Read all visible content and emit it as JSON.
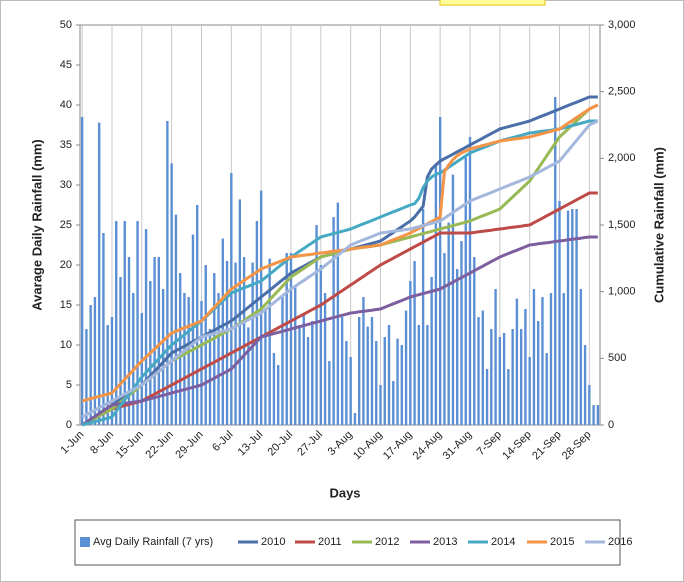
{
  "chart_data": {
    "type": "combo",
    "x_title": "Days",
    "y_title": "Avarage Daily Rainfall (mm)",
    "y2_title": "Cumulative Rainfall (mm)",
    "categories": [
      "1-Jun",
      null,
      null,
      null,
      null,
      null,
      null,
      "8-Jun",
      null,
      null,
      null,
      null,
      null,
      null,
      "15-Jun",
      null,
      null,
      null,
      null,
      null,
      null,
      "22-Jun",
      null,
      null,
      null,
      null,
      null,
      null,
      "29-Jun",
      null,
      null,
      null,
      null,
      null,
      null,
      "6-Jul",
      null,
      null,
      null,
      null,
      null,
      null,
      "13-Jul",
      null,
      null,
      null,
      null,
      null,
      null,
      "20-Jul",
      null,
      null,
      null,
      null,
      null,
      null,
      "27-Jul",
      null,
      null,
      null,
      null,
      null,
      null,
      "3-Aug",
      null,
      null,
      null,
      null,
      null,
      null,
      "10-Aug",
      null,
      null,
      null,
      null,
      null,
      null,
      "17-Aug",
      null,
      null,
      null,
      null,
      null,
      null,
      "24-Aug",
      null,
      null,
      null,
      null,
      null,
      null,
      "31-Aug",
      null,
      null,
      null,
      null,
      null,
      null,
      "7-Sep",
      null,
      null,
      null,
      null,
      null,
      null,
      "14-Sep",
      null,
      null,
      null,
      null,
      null,
      null,
      "21-Sep",
      null,
      null,
      null,
      null,
      null,
      null,
      "28-Sep",
      null,
      null
    ],
    "ylim": [
      0,
      50
    ],
    "yticks": [
      0,
      5,
      10,
      15,
      20,
      25,
      30,
      35,
      40,
      45,
      50
    ],
    "y2lim": [
      0,
      3000
    ],
    "y2ticks": [
      0,
      500,
      {
        "value": 1000,
        "label": "1,000"
      },
      {
        "value": 1500,
        "label": "1,500"
      },
      {
        "value": 2000,
        "label": "2,000"
      },
      {
        "value": 2500,
        "label": "2,500"
      },
      {
        "value": 3000,
        "label": "3,000"
      }
    ],
    "grid": "x",
    "series": [
      {
        "name": "Avg Daily Rainfall (7 yrs)",
        "type": "bar",
        "color": "#5b8fd4",
        "values": [
          38.5,
          12,
          15,
          16,
          37.8,
          24,
          12.5,
          13.5,
          25.5,
          18.5,
          25.5,
          21,
          16.5,
          25.5,
          14,
          24.5,
          18,
          21,
          21,
          17,
          38,
          32.7,
          26.3,
          19,
          16.5,
          16,
          23.8,
          27.5,
          15.5,
          20,
          12,
          19,
          16.5,
          23.3,
          20.5,
          31.5,
          20.3,
          28.2,
          21,
          12.2,
          20.3,
          25.5,
          29.3,
          14.5,
          20.8,
          9,
          7.5,
          16,
          21.5,
          21.5,
          17.5,
          12.5,
          14,
          11,
          13,
          25,
          20,
          16.5,
          8,
          26,
          27.8,
          13.5,
          10.5,
          8.5,
          1.5,
          13.5,
          16,
          12.3,
          13.5,
          10.5,
          5,
          11,
          12.5,
          5.5,
          10.8,
          10,
          14.3,
          18,
          20.5,
          12.5,
          27,
          12.5,
          18.5,
          32.7,
          38.5,
          21.5,
          25.3,
          31.3,
          19.5,
          23,
          33.5,
          36,
          21,
          13.5,
          14.3,
          7,
          12,
          17,
          11,
          11.5,
          7,
          12,
          15.8,
          12,
          14.5,
          8.5,
          17,
          13,
          16,
          9,
          16.5,
          41,
          28,
          16.5,
          26.8,
          27,
          27,
          17,
          10,
          5,
          2.5,
          2.5
        ]
      },
      {
        "name": "2010",
        "type": "line",
        "axis": "y2",
        "color": "#4a6ea8",
        "values": [
          0,
          21,
          43,
          64,
          86,
          107,
          129,
          150,
          171,
          193,
          214,
          236,
          257,
          279,
          300,
          334,
          369,
          403,
          437,
          471,
          506,
          540,
          557,
          574,
          591,
          609,
          626,
          643,
          660,
          677,
          694,
          711,
          729,
          746,
          763,
          780,
          806,
          831,
          857,
          883,
          909,
          934,
          960,
          986,
          1011,
          1037,
          1063,
          1089,
          1114,
          1140,
          1157,
          1174,
          1191,
          1209,
          1226,
          1243,
          1260,
          1269,
          1277,
          1286,
          1294,
          1303,
          1311,
          1320,
          1329,
          1337,
          1346,
          1354,
          1363,
          1371,
          1380,
          1401,
          1423,
          1444,
          1466,
          1487,
          1509,
          1530,
          1560,
          1600,
          1640,
          1860,
          1920,
          1950,
          1980,
          1997,
          2014,
          2031,
          2049,
          2066,
          2083,
          2100,
          2117,
          2134,
          2151,
          2169,
          2186,
          2203,
          2220,
          2229,
          2237,
          2246,
          2254,
          2263,
          2271,
          2280,
          2293,
          2306,
          2319,
          2331,
          2344,
          2357,
          2370,
          2383,
          2396,
          2409,
          2421,
          2434,
          2447,
          2460,
          2460,
          2460
        ]
      },
      {
        "name": "2011",
        "type": "line",
        "axis": "y2",
        "color": "#be4b48",
        "values": [
          0,
          17,
          34,
          51,
          69,
          86,
          103,
          120,
          129,
          137,
          146,
          154,
          163,
          171,
          180,
          197,
          214,
          231,
          249,
          266,
          283,
          300,
          317,
          334,
          351,
          369,
          386,
          403,
          420,
          437,
          454,
          471,
          489,
          506,
          523,
          540,
          557,
          574,
          591,
          609,
          626,
          643,
          660,
          677,
          694,
          711,
          729,
          746,
          763,
          780,
          797,
          814,
          831,
          849,
          866,
          883,
          900,
          921,
          943,
          964,
          986,
          1007,
          1029,
          1050,
          1071,
          1093,
          1114,
          1136,
          1157,
          1179,
          1200,
          1217,
          1234,
          1251,
          1269,
          1286,
          1303,
          1320,
          1337,
          1354,
          1371,
          1389,
          1406,
          1423,
          1440,
          1440,
          1440,
          1440,
          1440,
          1440,
          1440,
          1440,
          1444,
          1449,
          1453,
          1457,
          1461,
          1466,
          1470,
          1474,
          1479,
          1483,
          1487,
          1491,
          1496,
          1500,
          1517,
          1534,
          1551,
          1569,
          1586,
          1603,
          1620,
          1637,
          1654,
          1671,
          1689,
          1706,
          1723,
          1740,
          1740,
          1740
        ]
      },
      {
        "name": "2012",
        "type": "line",
        "axis": "y2",
        "color": "#98b954",
        "values": [
          0,
          17,
          34,
          51,
          69,
          86,
          103,
          120,
          146,
          171,
          197,
          223,
          249,
          274,
          300,
          326,
          351,
          377,
          403,
          429,
          454,
          480,
          497,
          514,
          531,
          549,
          566,
          583,
          600,
          617,
          634,
          651,
          669,
          686,
          703,
          720,
          741,
          763,
          784,
          806,
          827,
          849,
          870,
          904,
          939,
          973,
          1007,
          1041,
          1076,
          1110,
          1131,
          1153,
          1174,
          1196,
          1217,
          1239,
          1260,
          1269,
          1277,
          1286,
          1294,
          1303,
          1311,
          1320,
          1324,
          1329,
          1333,
          1337,
          1341,
          1346,
          1350,
          1359,
          1367,
          1376,
          1384,
          1393,
          1401,
          1410,
          1419,
          1427,
          1436,
          1444,
          1453,
          1461,
          1470,
          1479,
          1487,
          1496,
          1504,
          1513,
          1521,
          1530,
          1543,
          1556,
          1569,
          1581,
          1594,
          1607,
          1620,
          1650,
          1680,
          1710,
          1740,
          1770,
          1800,
          1830,
          1877,
          1924,
          1971,
          2019,
          2066,
          2113,
          2160,
          2190,
          2220,
          2250,
          2280,
          2310,
          2340,
          2370,
          2385,
          2400
        ]
      },
      {
        "name": "2013",
        "type": "line",
        "axis": "y2",
        "color": "#7d5fa0",
        "values": [
          0,
          21,
          43,
          64,
          86,
          107,
          129,
          150,
          154,
          159,
          163,
          167,
          171,
          176,
          180,
          189,
          197,
          206,
          214,
          223,
          231,
          240,
          249,
          257,
          266,
          274,
          283,
          291,
          300,
          317,
          334,
          351,
          369,
          386,
          403,
          420,
          454,
          489,
          523,
          557,
          591,
          626,
          660,
          669,
          677,
          686,
          694,
          703,
          711,
          720,
          729,
          737,
          746,
          754,
          763,
          771,
          780,
          789,
          797,
          806,
          814,
          823,
          831,
          840,
          844,
          849,
          853,
          857,
          861,
          866,
          870,
          883,
          896,
          909,
          921,
          934,
          947,
          960,
          969,
          977,
          986,
          994,
          1003,
          1011,
          1020,
          1037,
          1054,
          1071,
          1089,
          1106,
          1123,
          1140,
          1157,
          1174,
          1191,
          1209,
          1226,
          1243,
          1260,
          1273,
          1286,
          1299,
          1311,
          1324,
          1337,
          1350,
          1354,
          1359,
          1363,
          1367,
          1371,
          1376,
          1380,
          1384,
          1389,
          1393,
          1397,
          1401,
          1406,
          1410,
          1410,
          1410
        ]
      },
      {
        "name": "2014",
        "type": "line",
        "axis": "y2",
        "color": "#46a9c4",
        "values": [
          0,
          9,
          17,
          26,
          34,
          43,
          51,
          60,
          103,
          146,
          189,
          231,
          274,
          317,
          360,
          394,
          429,
          463,
          497,
          531,
          566,
          600,
          626,
          651,
          677,
          703,
          729,
          754,
          780,
          810,
          840,
          870,
          900,
          930,
          960,
          990,
          1003,
          1016,
          1029,
          1041,
          1054,
          1067,
          1080,
          1106,
          1131,
          1157,
          1183,
          1209,
          1234,
          1260,
          1281,
          1303,
          1324,
          1346,
          1367,
          1389,
          1410,
          1419,
          1427,
          1436,
          1444,
          1453,
          1461,
          1470,
          1483,
          1496,
          1509,
          1521,
          1534,
          1547,
          1560,
          1573,
          1586,
          1599,
          1611,
          1624,
          1637,
          1650,
          1660,
          1700,
          1780,
          1830,
          1860,
          1880,
          1890,
          1911,
          1933,
          1954,
          1976,
          1997,
          2019,
          2040,
          2053,
          2066,
          2079,
          2091,
          2104,
          2117,
          2130,
          2139,
          2147,
          2156,
          2164,
          2173,
          2181,
          2190,
          2194,
          2199,
          2203,
          2207,
          2211,
          2216,
          2220,
          2229,
          2237,
          2246,
          2254,
          2263,
          2271,
          2280,
          2280,
          2280
        ]
      },
      {
        "name": "2015",
        "type": "line",
        "axis": "y2",
        "color": "#f39446",
        "values": [
          180,
          189,
          197,
          206,
          214,
          223,
          231,
          240,
          274,
          309,
          343,
          377,
          411,
          446,
          480,
          510,
          540,
          570,
          600,
          630,
          660,
          690,
          703,
          716,
          729,
          741,
          754,
          767,
          780,
          814,
          849,
          883,
          917,
          951,
          986,
          1020,
          1041,
          1063,
          1084,
          1106,
          1127,
          1149,
          1170,
          1183,
          1196,
          1209,
          1221,
          1234,
          1247,
          1260,
          1264,
          1269,
          1273,
          1277,
          1281,
          1286,
          1290,
          1294,
          1299,
          1303,
          1307,
          1311,
          1316,
          1320,
          1324,
          1329,
          1333,
          1337,
          1341,
          1346,
          1350,
          1363,
          1376,
          1389,
          1401,
          1414,
          1427,
          1440,
          1457,
          1474,
          1491,
          1509,
          1526,
          1543,
          1560,
          1900,
          1950,
          1990,
          2020,
          2040,
          2055,
          2070,
          2079,
          2087,
          2096,
          2104,
          2113,
          2121,
          2130,
          2134,
          2139,
          2143,
          2147,
          2151,
          2156,
          2160,
          2169,
          2177,
          2186,
          2194,
          2203,
          2211,
          2220,
          2241,
          2263,
          2284,
          2306,
          2327,
          2349,
          2370,
          2385,
          2400
        ]
      },
      {
        "name": "2016",
        "type": "line",
        "axis": "y2",
        "color": "#a4b7dd",
        "values": [
          60,
          77,
          94,
          111,
          129,
          146,
          163,
          180,
          197,
          214,
          231,
          249,
          266,
          283,
          300,
          326,
          351,
          377,
          403,
          429,
          454,
          480,
          506,
          531,
          557,
          583,
          609,
          634,
          660,
          669,
          677,
          686,
          694,
          703,
          711,
          720,
          737,
          754,
          771,
          789,
          806,
          823,
          840,
          866,
          891,
          917,
          943,
          969,
          994,
          1020,
          1041,
          1063,
          1084,
          1106,
          1127,
          1149,
          1170,
          1196,
          1221,
          1247,
          1273,
          1299,
          1324,
          1350,
          1363,
          1376,
          1389,
          1401,
          1414,
          1427,
          1440,
          1444,
          1449,
          1453,
          1457,
          1461,
          1466,
          1470,
          1479,
          1487,
          1496,
          1504,
          1513,
          1521,
          1530,
          1551,
          1573,
          1594,
          1616,
          1637,
          1659,
          1680,
          1693,
          1706,
          1719,
          1731,
          1744,
          1757,
          1770,
          1783,
          1796,
          1809,
          1821,
          1834,
          1847,
          1860,
          1877,
          1894,
          1911,
          1929,
          1946,
          1963,
          1980,
          2019,
          2057,
          2096,
          2134,
          2173,
          2211,
          2250,
          2265,
          2280
        ]
      }
    ]
  }
}
